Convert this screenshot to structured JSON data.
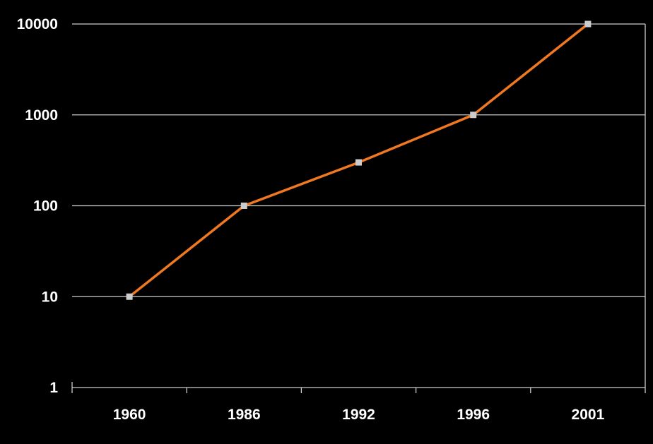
{
  "chart_data": {
    "type": "line",
    "title": "",
    "xlabel": "",
    "ylabel": "",
    "y_scale": "log",
    "ylim": [
      1,
      10000
    ],
    "y_ticks": [
      "1",
      "10",
      "100",
      "1000",
      "10000"
    ],
    "y_tick_values": [
      1,
      10,
      100,
      1000,
      10000
    ],
    "categories": [
      "1960",
      "1986",
      "1992",
      "1996",
      "2001"
    ],
    "series": [
      {
        "values": [
          10,
          100,
          300,
          1000,
          10000
        ],
        "color": "#f07820",
        "marker_color": "#cccccc"
      }
    ],
    "grid": true,
    "legend": "none",
    "background": "#000000",
    "gridline_color": "#cccccc",
    "text_color": "#ffffff"
  }
}
